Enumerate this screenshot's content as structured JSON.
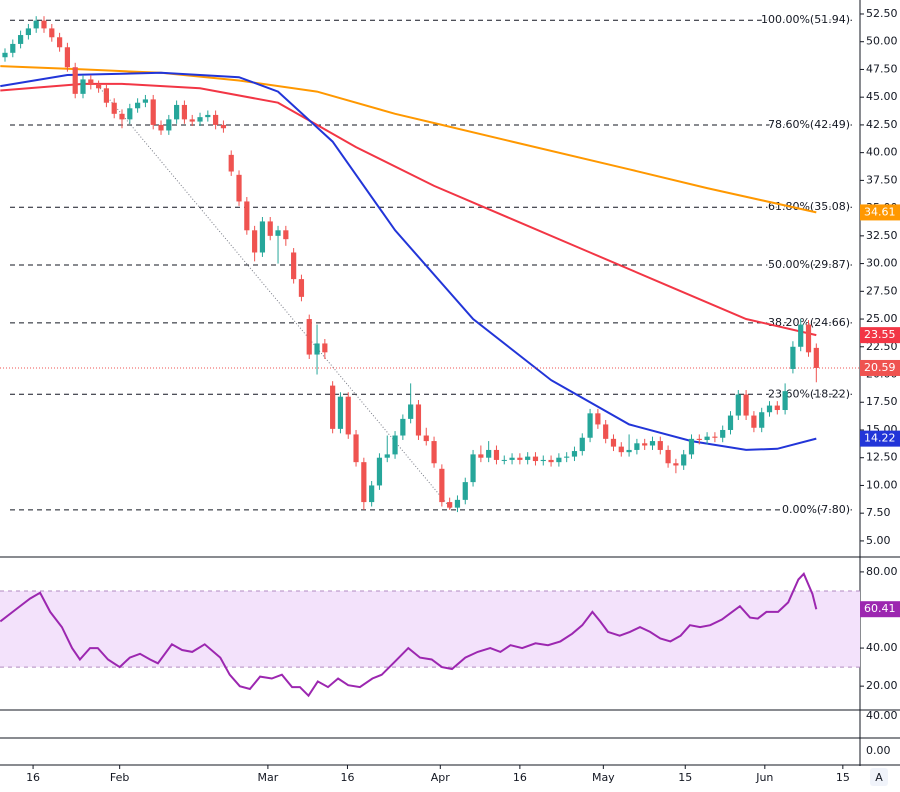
{
  "chart_data": [
    {
      "type": "candlestick",
      "up_color": "#26a69a",
      "down_color": "#ef5350",
      "open": [
        48.6,
        49,
        49.8,
        50.6,
        51.2,
        51.9,
        51.2,
        50.4,
        49.5,
        47.7,
        45.3,
        46.6,
        46.1,
        45.8,
        44.5,
        43.5,
        43,
        44,
        44.5,
        44.8,
        42.5,
        42,
        43,
        44.3,
        43,
        42.8,
        43.2,
        43.4,
        42.5,
        39.8,
        38,
        35.6,
        33,
        31,
        33.8,
        32.5,
        33,
        31,
        28.6,
        25,
        21.8,
        22.8,
        19,
        15.1,
        18,
        14.6,
        12.1,
        8.5,
        10,
        12.5,
        12.8,
        14.5,
        16,
        17.3,
        14.5,
        14,
        11.5,
        8.5,
        8,
        8.7,
        10.3,
        12.8,
        12.5,
        13.2,
        12.3,
        12.3,
        12.5,
        12.3,
        12.6,
        12.2,
        12.3,
        12.1,
        12.5,
        12.6,
        13.1,
        14.3,
        16.5,
        15.5,
        14.2,
        13.5,
        13,
        13.2,
        13.8,
        13.6,
        14,
        13.2,
        12,
        11.8,
        12.8,
        14.2,
        14.1,
        14.4,
        14.3,
        15,
        16.3,
        18.2,
        16.3,
        15.2,
        16.6,
        17.2,
        16.8,
        20.5,
        22.5,
        24.5,
        22.4
      ],
      "high": [
        49.4,
        50.2,
        51,
        51.6,
        52.3,
        52.3,
        51.6,
        50.8,
        49.9,
        48.1,
        47,
        47,
        46.5,
        46.2,
        44.9,
        43.9,
        44.4,
        44.9,
        45.2,
        45.2,
        42.9,
        43.4,
        44.7,
        44.7,
        43.4,
        43.6,
        43.8,
        43.8,
        42.9,
        40.2,
        38.4,
        36,
        33.4,
        34.2,
        34.2,
        33.4,
        33.4,
        31.4,
        29,
        25.4,
        24.5,
        23.2,
        19.4,
        18.4,
        18.4,
        15,
        12.5,
        10.4,
        12.9,
        14.5,
        14.9,
        16.4,
        19.2,
        17.7,
        15.2,
        14.4,
        11.9,
        8.9,
        9.1,
        10.7,
        13.2,
        13.6,
        14,
        13.6,
        12.7,
        12.9,
        12.9,
        13,
        13,
        12.7,
        12.7,
        12.9,
        13,
        13.5,
        14.7,
        16.9,
        16.9,
        15.9,
        14.6,
        13.9,
        14.6,
        14.2,
        14.2,
        14.4,
        14.4,
        13.6,
        12.4,
        13.2,
        14.6,
        14.6,
        14.8,
        14.8,
        15.4,
        16.7,
        18.6,
        18.6,
        16.7,
        17,
        17.6,
        17.6,
        19.2,
        23,
        25,
        24.9,
        22.8
      ],
      "low": [
        48.2,
        48.6,
        49.4,
        50.2,
        50.8,
        50.8,
        50,
        49.1,
        47.3,
        44.9,
        44.9,
        45.7,
        45.4,
        44.1,
        43.1,
        42.2,
        42.6,
        43.6,
        44.1,
        42.1,
        41.6,
        41.6,
        42.6,
        42.6,
        42.4,
        42.4,
        42.8,
        42.1,
        41.8,
        37.9,
        35.2,
        32.6,
        30.2,
        30.6,
        32.1,
        30,
        31.6,
        28.2,
        26.6,
        21.4,
        20,
        21.4,
        14.7,
        14.7,
        14.2,
        11.7,
        7.8,
        8.1,
        9.6,
        12.1,
        12.4,
        14.1,
        15.6,
        14.1,
        13.6,
        11.6,
        8.1,
        7.8,
        7.6,
        8.3,
        9.9,
        12.1,
        12.1,
        11.9,
        11.9,
        11.9,
        11.9,
        11.9,
        11.8,
        11.8,
        11.7,
        11.7,
        12.1,
        12.2,
        12.7,
        13.9,
        15.1,
        13.8,
        13.1,
        12.6,
        12.6,
        12.8,
        13.2,
        13.2,
        12.8,
        11.6,
        11.1,
        11.4,
        12.4,
        13.7,
        13.7,
        13.9,
        13.9,
        14.6,
        15.9,
        15.9,
        14.8,
        14.8,
        16.2,
        16.4,
        16.4,
        20.1,
        22.1,
        21.6,
        19.3
      ],
      "close": [
        49,
        49.8,
        50.6,
        51.2,
        51.9,
        51.2,
        50.4,
        49.5,
        47.7,
        45.3,
        46.6,
        46.1,
        45.8,
        44.5,
        43.5,
        43,
        44,
        44.5,
        44.8,
        42.5,
        42,
        43,
        44.3,
        43,
        42.8,
        43.2,
        43.4,
        42.5,
        42.2,
        38.3,
        35.6,
        33,
        31,
        33.8,
        32.5,
        33,
        32.2,
        28.6,
        27,
        21.8,
        22.8,
        22,
        15.1,
        18,
        14.6,
        12.1,
        8.5,
        10,
        12.5,
        12.8,
        14.5,
        16,
        17.3,
        14.5,
        14,
        12,
        8.5,
        8,
        8.7,
        10.3,
        12.8,
        12.5,
        13.2,
        12.3,
        12.3,
        12.5,
        12.3,
        12.6,
        12.2,
        12.3,
        12.1,
        12.5,
        12.6,
        13.1,
        14.3,
        16.5,
        15.5,
        14.2,
        13.5,
        13,
        13.2,
        13.8,
        13.6,
        14,
        13.2,
        12,
        11.8,
        12.8,
        14.2,
        14.1,
        14.4,
        14.3,
        15,
        16.3,
        18.2,
        16.3,
        15.2,
        16.6,
        17.2,
        16.8,
        18.5,
        22.5,
        24.5,
        22,
        20.59
      ],
      "xlim": [
        -0.64,
        109.6
      ],
      "xticks": [
        {
          "value": 3.6,
          "label": "16"
        },
        {
          "value": 14.7,
          "label": "Feb"
        },
        {
          "value": 33.7,
          "label": "Mar"
        },
        {
          "value": 43.9,
          "label": "16"
        },
        {
          "value": 55.8,
          "label": "Apr"
        },
        {
          "value": 66.0,
          "label": "16"
        },
        {
          "value": 76.7,
          "label": "May"
        },
        {
          "value": 87.2,
          "label": "15"
        },
        {
          "value": 97.4,
          "label": "Jun"
        },
        {
          "value": 107.4,
          "label": "15"
        }
      ],
      "ylim": [
        3.64,
        53.76
      ],
      "yticks": [
        {
          "value": 5,
          "label": "5.00"
        },
        {
          "value": 7.5,
          "label": "7.50"
        },
        {
          "value": 10,
          "label": "10.00"
        },
        {
          "value": 12.5,
          "label": "12.50"
        },
        {
          "value": 15,
          "label": "15.00"
        },
        {
          "value": 17.5,
          "label": "17.50"
        },
        {
          "value": 20,
          "label": "20.00"
        },
        {
          "value": 22.5,
          "label": "22.50"
        },
        {
          "value": 25,
          "label": "25.00"
        },
        {
          "value": 27.5,
          "label": "27.50"
        },
        {
          "value": 30,
          "label": "30.00"
        },
        {
          "value": 32.5,
          "label": "32.50"
        },
        {
          "value": 35,
          "label": "35.00"
        },
        {
          "value": 37.5,
          "label": "37.50"
        },
        {
          "value": 40,
          "label": "40.00"
        },
        {
          "value": 42.5,
          "label": "42.50"
        },
        {
          "value": 45,
          "label": "45.00"
        },
        {
          "value": 47.5,
          "label": "47.50"
        },
        {
          "value": 50,
          "label": "50.00"
        },
        {
          "value": 52.5,
          "label": "52.50"
        }
      ],
      "lines": [
        {
          "color": "#ff9800",
          "x": [
            -0.6,
            10,
            20,
            30,
            40,
            50,
            56,
            65,
            80,
            90,
            104
          ],
          "values": [
            47.8,
            47.5,
            47.2,
            46.5,
            45.5,
            43.5,
            42.5,
            41,
            38.5,
            36.8,
            34.61
          ]
        },
        {
          "color": "#f23645",
          "x": [
            -0.6,
            10,
            15,
            25,
            35,
            45,
            55,
            65,
            75,
            85,
            95,
            104
          ],
          "values": [
            45.6,
            46.2,
            46.2,
            45.8,
            44.5,
            40.5,
            37,
            34,
            31,
            28,
            25,
            23.55
          ]
        },
        {
          "color": "#2235d8",
          "x": [
            -0.6,
            8,
            20,
            30,
            35,
            42,
            50,
            60,
            70,
            80,
            88,
            95,
            99,
            104
          ],
          "values": [
            46,
            47,
            47.2,
            46.8,
            45.5,
            41,
            33,
            25,
            19.5,
            15.5,
            14,
            13.2,
            13.3,
            14.22
          ]
        }
      ],
      "levels": [
        {
          "value": 51.94,
          "label": "100.00%(51.94)"
        },
        {
          "value": 42.49,
          "label": "78.60%(42.49)"
        },
        {
          "value": 35.08,
          "label": "61.80%(35.08)"
        },
        {
          "value": 29.87,
          "label": "50.00%(29.87)"
        },
        {
          "value": 24.66,
          "label": "38.20%(24.66)"
        },
        {
          "value": 18.22,
          "label": "23.60%(18.22)"
        },
        {
          "value": 7.8,
          "label": "0.00%(7.80)"
        }
      ],
      "trendline": {
        "x": [
          12.2,
          57.3
        ],
        "y": [
          45.8,
          7.8
        ]
      }
    },
    {
      "type": "line",
      "color": "#9c27b0",
      "band": [
        30,
        70
      ],
      "band_color": "#f3e2fb",
      "x": [
        -0.6,
        1.3,
        3.2,
        4.5,
        5.8,
        7.3,
        8.6,
        9.6,
        10.9,
        11.9,
        13.2,
        14.7,
        16.0,
        17.3,
        18.6,
        19.6,
        21.4,
        22.7,
        24.0,
        25.6,
        27.6,
        28.8,
        30.1,
        31.4,
        32.7,
        34.2,
        35.5,
        36.8,
        37.8,
        38.9,
        40.1,
        41.4,
        42.7,
        44.0,
        45.5,
        47.1,
        48.3,
        50.0,
        51.7,
        53.2,
        54.7,
        56.0,
        57.3,
        59.0,
        60.6,
        62.2,
        63.5,
        64.8,
        66.3,
        68.0,
        69.6,
        71.2,
        72.7,
        74.0,
        75.3,
        76.3,
        77.3,
        78.8,
        80.1,
        81.4,
        82.7,
        84.0,
        85.3,
        86.6,
        87.8,
        89.1,
        90.4,
        91.9,
        93.2,
        94.2,
        95.5,
        96.5,
        97.6,
        99.1,
        100.4,
        101.7,
        102.4,
        103.5,
        104
      ],
      "values": [
        54,
        60,
        66,
        69,
        59,
        51,
        40,
        34,
        40,
        40,
        34,
        30,
        35,
        37,
        34,
        32,
        42,
        39,
        38,
        42,
        35,
        26,
        20,
        18.5,
        25,
        24,
        26,
        19.5,
        19.5,
        15,
        22.5,
        19.5,
        24,
        20.5,
        19.5,
        24,
        26,
        33,
        40,
        35,
        34,
        30,
        29,
        35,
        38,
        40,
        38,
        41.5,
        40,
        42.5,
        41.5,
        43.5,
        47.5,
        52,
        59,
        54,
        48.5,
        46.5,
        48.5,
        51,
        48.5,
        45,
        43.5,
        46.5,
        52,
        51,
        52,
        55,
        59,
        62,
        56,
        55.5,
        59,
        59,
        64,
        76,
        79,
        68.5,
        60.41
      ],
      "ylim": [
        8,
        87.3
      ],
      "yticks": [
        {
          "value": 20,
          "label": "20.00"
        },
        {
          "value": 40,
          "label": "40.00"
        },
        {
          "value": 80,
          "label": "80.00"
        }
      ]
    }
  ],
  "extra_pane_ticks": [
    "40.00",
    "0.00"
  ],
  "scale_button": "A"
}
